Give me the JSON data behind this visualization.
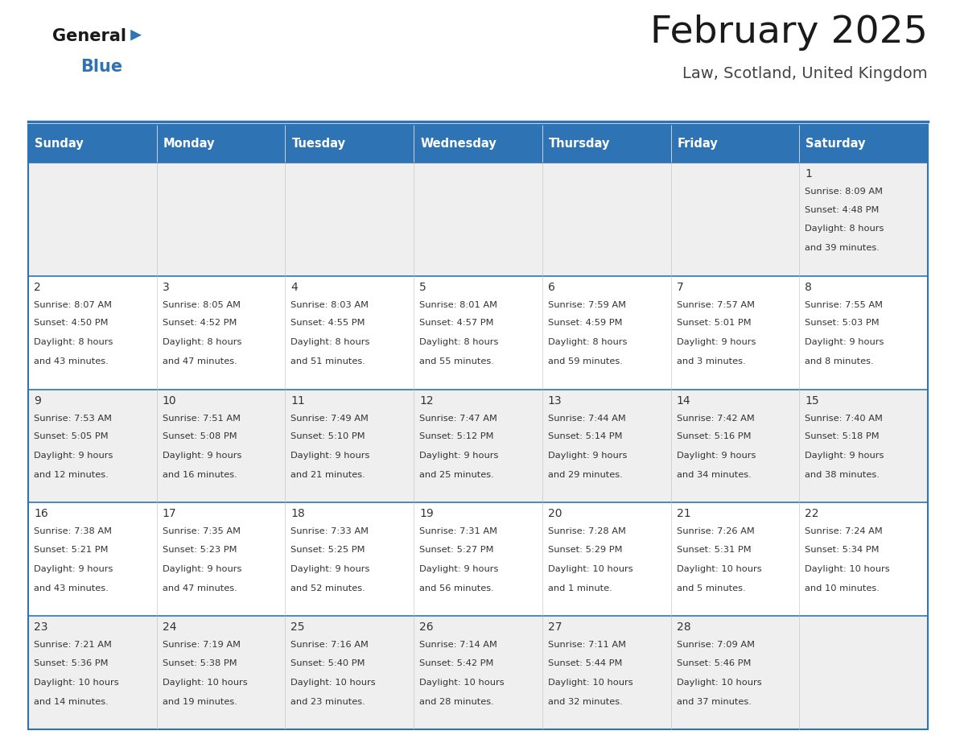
{
  "title": "February 2025",
  "subtitle": "Law, Scotland, United Kingdom",
  "header_bg": "#2E74B5",
  "header_text_color": "#FFFFFF",
  "cell_bg_odd": "#EFEFEF",
  "cell_bg_even": "#FFFFFF",
  "border_color": "#2E74B5",
  "day_names": [
    "Sunday",
    "Monday",
    "Tuesday",
    "Wednesday",
    "Thursday",
    "Friday",
    "Saturday"
  ],
  "title_color": "#1a1a1a",
  "subtitle_color": "#444444",
  "text_color": "#333333",
  "logo_general_color": "#1a1a1a",
  "logo_blue_color": "#2E74B5",
  "days": [
    {
      "day": 1,
      "col": 6,
      "row": 0,
      "sunrise": "8:09 AM",
      "sunset": "4:48 PM",
      "daylight_line1": "Daylight: 8 hours",
      "daylight_line2": "and 39 minutes."
    },
    {
      "day": 2,
      "col": 0,
      "row": 1,
      "sunrise": "8:07 AM",
      "sunset": "4:50 PM",
      "daylight_line1": "Daylight: 8 hours",
      "daylight_line2": "and 43 minutes."
    },
    {
      "day": 3,
      "col": 1,
      "row": 1,
      "sunrise": "8:05 AM",
      "sunset": "4:52 PM",
      "daylight_line1": "Daylight: 8 hours",
      "daylight_line2": "and 47 minutes."
    },
    {
      "day": 4,
      "col": 2,
      "row": 1,
      "sunrise": "8:03 AM",
      "sunset": "4:55 PM",
      "daylight_line1": "Daylight: 8 hours",
      "daylight_line2": "and 51 minutes."
    },
    {
      "day": 5,
      "col": 3,
      "row": 1,
      "sunrise": "8:01 AM",
      "sunset": "4:57 PM",
      "daylight_line1": "Daylight: 8 hours",
      "daylight_line2": "and 55 minutes."
    },
    {
      "day": 6,
      "col": 4,
      "row": 1,
      "sunrise": "7:59 AM",
      "sunset": "4:59 PM",
      "daylight_line1": "Daylight: 8 hours",
      "daylight_line2": "and 59 minutes."
    },
    {
      "day": 7,
      "col": 5,
      "row": 1,
      "sunrise": "7:57 AM",
      "sunset": "5:01 PM",
      "daylight_line1": "Daylight: 9 hours",
      "daylight_line2": "and 3 minutes."
    },
    {
      "day": 8,
      "col": 6,
      "row": 1,
      "sunrise": "7:55 AM",
      "sunset": "5:03 PM",
      "daylight_line1": "Daylight: 9 hours",
      "daylight_line2": "and 8 minutes."
    },
    {
      "day": 9,
      "col": 0,
      "row": 2,
      "sunrise": "7:53 AM",
      "sunset": "5:05 PM",
      "daylight_line1": "Daylight: 9 hours",
      "daylight_line2": "and 12 minutes."
    },
    {
      "day": 10,
      "col": 1,
      "row": 2,
      "sunrise": "7:51 AM",
      "sunset": "5:08 PM",
      "daylight_line1": "Daylight: 9 hours",
      "daylight_line2": "and 16 minutes."
    },
    {
      "day": 11,
      "col": 2,
      "row": 2,
      "sunrise": "7:49 AM",
      "sunset": "5:10 PM",
      "daylight_line1": "Daylight: 9 hours",
      "daylight_line2": "and 21 minutes."
    },
    {
      "day": 12,
      "col": 3,
      "row": 2,
      "sunrise": "7:47 AM",
      "sunset": "5:12 PM",
      "daylight_line1": "Daylight: 9 hours",
      "daylight_line2": "and 25 minutes."
    },
    {
      "day": 13,
      "col": 4,
      "row": 2,
      "sunrise": "7:44 AM",
      "sunset": "5:14 PM",
      "daylight_line1": "Daylight: 9 hours",
      "daylight_line2": "and 29 minutes."
    },
    {
      "day": 14,
      "col": 5,
      "row": 2,
      "sunrise": "7:42 AM",
      "sunset": "5:16 PM",
      "daylight_line1": "Daylight: 9 hours",
      "daylight_line2": "and 34 minutes."
    },
    {
      "day": 15,
      "col": 6,
      "row": 2,
      "sunrise": "7:40 AM",
      "sunset": "5:18 PM",
      "daylight_line1": "Daylight: 9 hours",
      "daylight_line2": "and 38 minutes."
    },
    {
      "day": 16,
      "col": 0,
      "row": 3,
      "sunrise": "7:38 AM",
      "sunset": "5:21 PM",
      "daylight_line1": "Daylight: 9 hours",
      "daylight_line2": "and 43 minutes."
    },
    {
      "day": 17,
      "col": 1,
      "row": 3,
      "sunrise": "7:35 AM",
      "sunset": "5:23 PM",
      "daylight_line1": "Daylight: 9 hours",
      "daylight_line2": "and 47 minutes."
    },
    {
      "day": 18,
      "col": 2,
      "row": 3,
      "sunrise": "7:33 AM",
      "sunset": "5:25 PM",
      "daylight_line1": "Daylight: 9 hours",
      "daylight_line2": "and 52 minutes."
    },
    {
      "day": 19,
      "col": 3,
      "row": 3,
      "sunrise": "7:31 AM",
      "sunset": "5:27 PM",
      "daylight_line1": "Daylight: 9 hours",
      "daylight_line2": "and 56 minutes."
    },
    {
      "day": 20,
      "col": 4,
      "row": 3,
      "sunrise": "7:28 AM",
      "sunset": "5:29 PM",
      "daylight_line1": "Daylight: 10 hours",
      "daylight_line2": "and 1 minute."
    },
    {
      "day": 21,
      "col": 5,
      "row": 3,
      "sunrise": "7:26 AM",
      "sunset": "5:31 PM",
      "daylight_line1": "Daylight: 10 hours",
      "daylight_line2": "and 5 minutes."
    },
    {
      "day": 22,
      "col": 6,
      "row": 3,
      "sunrise": "7:24 AM",
      "sunset": "5:34 PM",
      "daylight_line1": "Daylight: 10 hours",
      "daylight_line2": "and 10 minutes."
    },
    {
      "day": 23,
      "col": 0,
      "row": 4,
      "sunrise": "7:21 AM",
      "sunset": "5:36 PM",
      "daylight_line1": "Daylight: 10 hours",
      "daylight_line2": "and 14 minutes."
    },
    {
      "day": 24,
      "col": 1,
      "row": 4,
      "sunrise": "7:19 AM",
      "sunset": "5:38 PM",
      "daylight_line1": "Daylight: 10 hours",
      "daylight_line2": "and 19 minutes."
    },
    {
      "day": 25,
      "col": 2,
      "row": 4,
      "sunrise": "7:16 AM",
      "sunset": "5:40 PM",
      "daylight_line1": "Daylight: 10 hours",
      "daylight_line2": "and 23 minutes."
    },
    {
      "day": 26,
      "col": 3,
      "row": 4,
      "sunrise": "7:14 AM",
      "sunset": "5:42 PM",
      "daylight_line1": "Daylight: 10 hours",
      "daylight_line2": "and 28 minutes."
    },
    {
      "day": 27,
      "col": 4,
      "row": 4,
      "sunrise": "7:11 AM",
      "sunset": "5:44 PM",
      "daylight_line1": "Daylight: 10 hours",
      "daylight_line2": "and 32 minutes."
    },
    {
      "day": 28,
      "col": 5,
      "row": 4,
      "sunrise": "7:09 AM",
      "sunset": "5:46 PM",
      "daylight_line1": "Daylight: 10 hours",
      "daylight_line2": "and 37 minutes."
    }
  ]
}
